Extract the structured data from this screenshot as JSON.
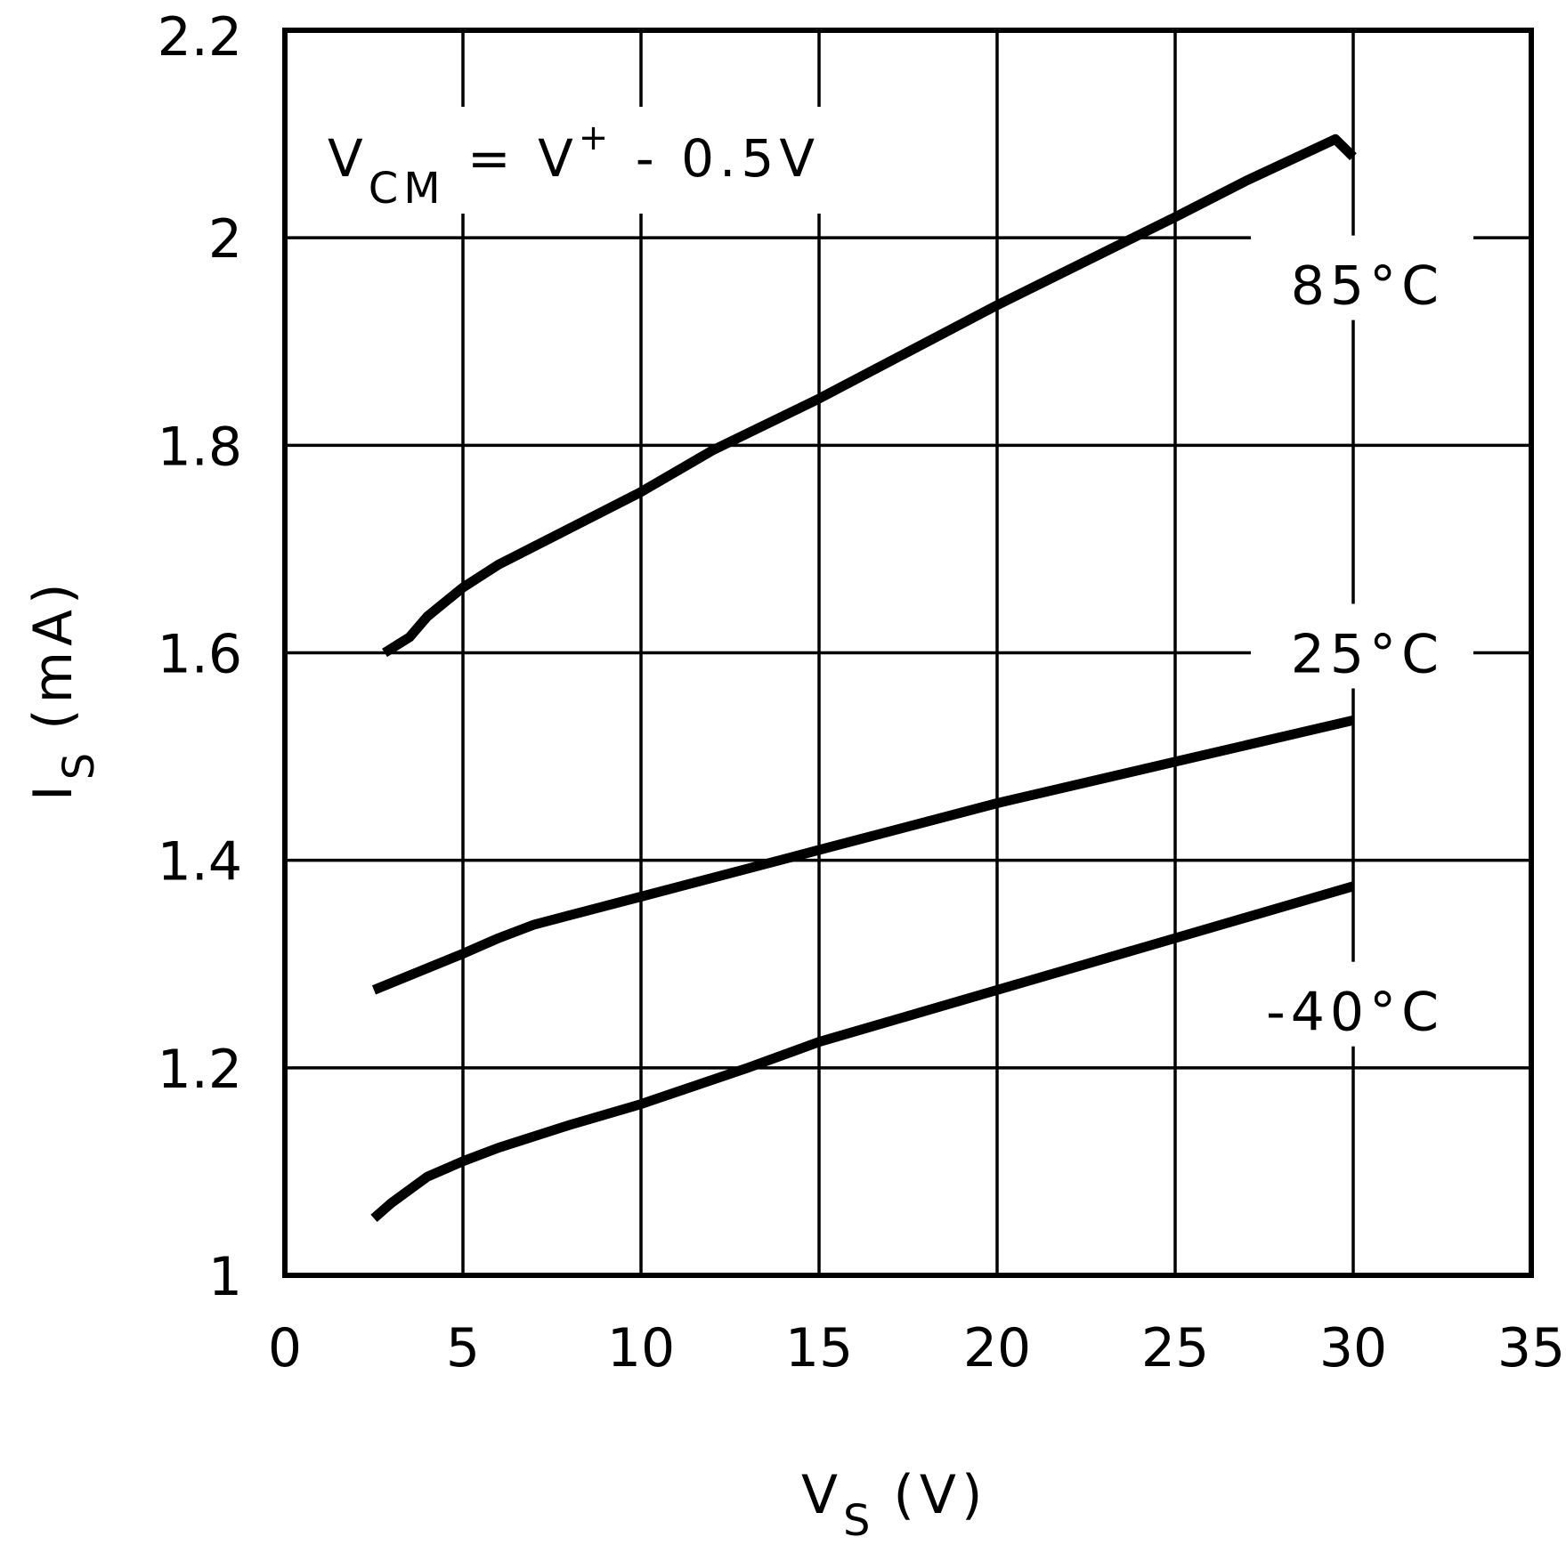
{
  "chart_data": {
    "type": "line",
    "xlabel": "V",
    "xlabel_sub": "S",
    "xlabel_unit": "(V)",
    "ylabel": "I",
    "ylabel_sub": "S",
    "ylabel_unit": "(mA)",
    "xlim": [
      0,
      35
    ],
    "ylim": [
      1.0,
      2.2
    ],
    "xticks": [
      "0",
      "5",
      "10",
      "15",
      "20",
      "25",
      "30",
      "35"
    ],
    "yticks": [
      "1",
      "1.2",
      "1.4",
      "1.6",
      "1.8",
      "2",
      "2.2"
    ],
    "grid": true,
    "annotation": {
      "main": "V",
      "sub": "CM",
      "mid": " = V",
      "sup": "+",
      "tail": " - 0.5V"
    },
    "line_color": "#000000",
    "series": [
      {
        "name": "85°C",
        "x": [
          2.8,
          3.5,
          4,
          5,
          6,
          8,
          10,
          12,
          15,
          20,
          25,
          27,
          29.5,
          30
        ],
        "y": [
          1.6,
          1.615,
          1.635,
          1.663,
          1.685,
          1.72,
          1.755,
          1.795,
          1.845,
          1.935,
          2.02,
          2.055,
          2.095,
          2.078
        ]
      },
      {
        "name": "25°C",
        "x": [
          2.5,
          5,
          6,
          7,
          10,
          15,
          20,
          25,
          30
        ],
        "y": [
          1.275,
          1.31,
          1.325,
          1.338,
          1.365,
          1.41,
          1.455,
          1.495,
          1.535
        ]
      },
      {
        "name": "-40°C",
        "x": [
          2.5,
          3,
          4,
          5,
          6,
          8,
          10,
          13,
          15,
          20,
          25,
          27,
          30
        ],
        "y": [
          1.055,
          1.07,
          1.095,
          1.11,
          1.123,
          1.145,
          1.165,
          1.2,
          1.225,
          1.275,
          1.325,
          1.345,
          1.375
        ]
      }
    ]
  }
}
